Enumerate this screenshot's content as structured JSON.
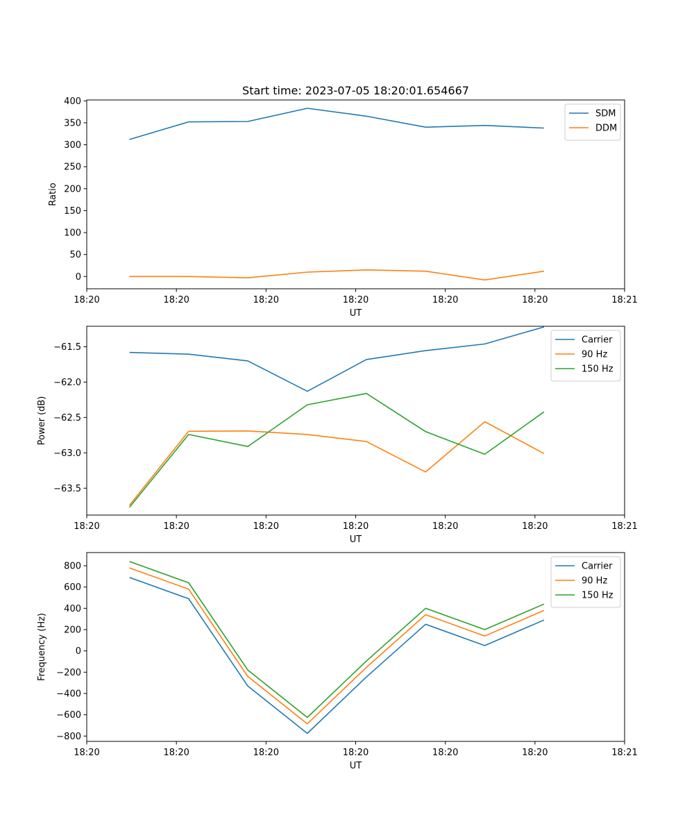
{
  "figure": {
    "title": "Start time: 2023-07-05 18:20:01.654667"
  },
  "colors": {
    "blue": "#1f77b4",
    "orange": "#ff7f0e",
    "green": "#2ca02c"
  },
  "chart_data": [
    {
      "type": "line",
      "title": "Start time: 2023-07-05 18:20:01.654667",
      "xlabel": "UT",
      "ylabel": "Ratio",
      "xlim": [
        -0.25,
        8.75
      ],
      "ylim": [
        -28,
        402
      ],
      "xticks": [
        -0.25,
        1.25,
        2.75,
        4.25,
        5.75,
        7.25,
        8.75
      ],
      "xticklabels": [
        "18:20",
        "18:20",
        "18:20",
        "18:20",
        "18:20",
        "18:20",
        "18:21"
      ],
      "yticks": [
        0,
        50,
        100,
        150,
        200,
        250,
        300,
        350,
        400
      ],
      "yticklabels": [
        "0",
        "50",
        "100",
        "150",
        "200",
        "250",
        "300",
        "350",
        "400"
      ],
      "legend": "upper right",
      "x": [
        0.465,
        1.455,
        2.445,
        3.44,
        4.43,
        5.42,
        6.41,
        7.4
      ],
      "series": [
        {
          "name": "SDM",
          "color": "#1f77b4",
          "values": [
            312,
            352,
            353,
            383,
            365,
            340,
            344,
            338
          ]
        },
        {
          "name": "DDM",
          "color": "#ff7f0e",
          "values": [
            0,
            0,
            -3,
            10,
            15,
            12,
            -8,
            12
          ]
        }
      ]
    },
    {
      "type": "line",
      "title": "",
      "xlabel": "UT",
      "ylabel": "Power (dB)",
      "xlim": [
        -0.25,
        8.75
      ],
      "ylim": [
        -63.88,
        -61.21
      ],
      "xticks": [
        -0.25,
        1.25,
        2.75,
        4.25,
        5.75,
        7.25,
        8.75
      ],
      "xticklabels": [
        "18:20",
        "18:20",
        "18:20",
        "18:20",
        "18:20",
        "18:20",
        "18:21"
      ],
      "yticks": [
        -63.5,
        -63.0,
        -62.5,
        -62.0,
        -61.5
      ],
      "yticklabels": [
        "−63.5",
        "−63.0",
        "−62.5",
        "−62.0",
        "−61.5"
      ],
      "legend": "upper right",
      "x": [
        0.465,
        1.455,
        2.445,
        3.44,
        4.43,
        5.42,
        6.41,
        7.4
      ],
      "series": [
        {
          "name": "Carrier",
          "color": "#1f77b4",
          "values": [
            -61.58,
            -61.605,
            -61.7,
            -62.13,
            -61.68,
            -61.555,
            -61.46,
            -61.22
          ]
        },
        {
          "name": "90 Hz",
          "color": "#ff7f0e",
          "values": [
            -63.74,
            -62.695,
            -62.69,
            -62.74,
            -62.84,
            -63.27,
            -62.56,
            -63.01
          ]
        },
        {
          "name": "150 Hz",
          "color": "#2ca02c",
          "values": [
            -63.77,
            -62.74,
            -62.91,
            -62.32,
            -62.16,
            -62.7,
            -63.02,
            -62.42
          ]
        }
      ]
    },
    {
      "type": "line",
      "title": "",
      "xlabel": "UT",
      "ylabel": "Frequency (Hz)",
      "xlim": [
        -0.25,
        8.75
      ],
      "ylim": [
        -850,
        924
      ],
      "xticks": [
        -0.25,
        1.25,
        2.75,
        4.25,
        5.75,
        7.25,
        8.75
      ],
      "xticklabels": [
        "18:20",
        "18:20",
        "18:20",
        "18:20",
        "18:20",
        "18:20",
        "18:21"
      ],
      "yticks": [
        -800,
        -600,
        -400,
        -200,
        0,
        200,
        400,
        600,
        800
      ],
      "yticklabels": [
        "−800",
        "−600",
        "−400",
        "−200",
        "0",
        "200",
        "400",
        "600",
        "800"
      ],
      "legend": "upper right",
      "x": [
        0.465,
        1.455,
        2.445,
        3.44,
        4.43,
        5.42,
        6.41,
        7.4
      ],
      "series": [
        {
          "name": "Carrier",
          "color": "#1f77b4",
          "values": [
            690,
            490,
            -330,
            -775,
            -245,
            250,
            50,
            290
          ]
        },
        {
          "name": "90 Hz",
          "color": "#ff7f0e",
          "values": [
            780,
            580,
            -240,
            -685,
            -155,
            340,
            140,
            380
          ]
        },
        {
          "name": "150 Hz",
          "color": "#2ca02c",
          "values": [
            840,
            640,
            -180,
            -625,
            -95,
            400,
            200,
            440
          ]
        }
      ]
    }
  ]
}
